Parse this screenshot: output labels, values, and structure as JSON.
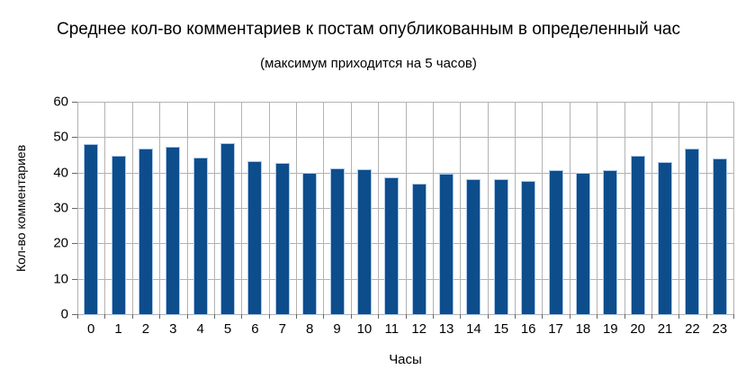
{
  "chart_data": {
    "type": "bar",
    "title": "Среднее кол-во комментариев к постам опубликованным в определенный час",
    "subtitle": "(максимум приходится на 5 часов)",
    "xlabel": "Часы",
    "ylabel": "Кол-во комментариев",
    "categories": [
      "0",
      "1",
      "2",
      "3",
      "4",
      "5",
      "6",
      "7",
      "8",
      "9",
      "10",
      "11",
      "12",
      "13",
      "14",
      "15",
      "16",
      "17",
      "18",
      "19",
      "20",
      "21",
      "22",
      "23"
    ],
    "values": [
      48.4,
      44.9,
      47.1,
      47.5,
      44.5,
      48.5,
      43.6,
      43.0,
      40.2,
      41.4,
      41.1,
      39.0,
      37.0,
      39.9,
      38.4,
      38.3,
      38.0,
      41.0,
      40.2,
      41.0,
      44.9,
      43.3,
      47.1,
      44.2
    ],
    "ylim": [
      0,
      60
    ],
    "yticks": [
      0,
      10,
      20,
      30,
      40,
      50,
      60
    ],
    "grid": true,
    "legend": false,
    "bar_color": "#0e4d8c",
    "bar_border_color": "#a9c7e8",
    "gridline_color": "#b3b3b3",
    "background_color": "#ffffff"
  }
}
